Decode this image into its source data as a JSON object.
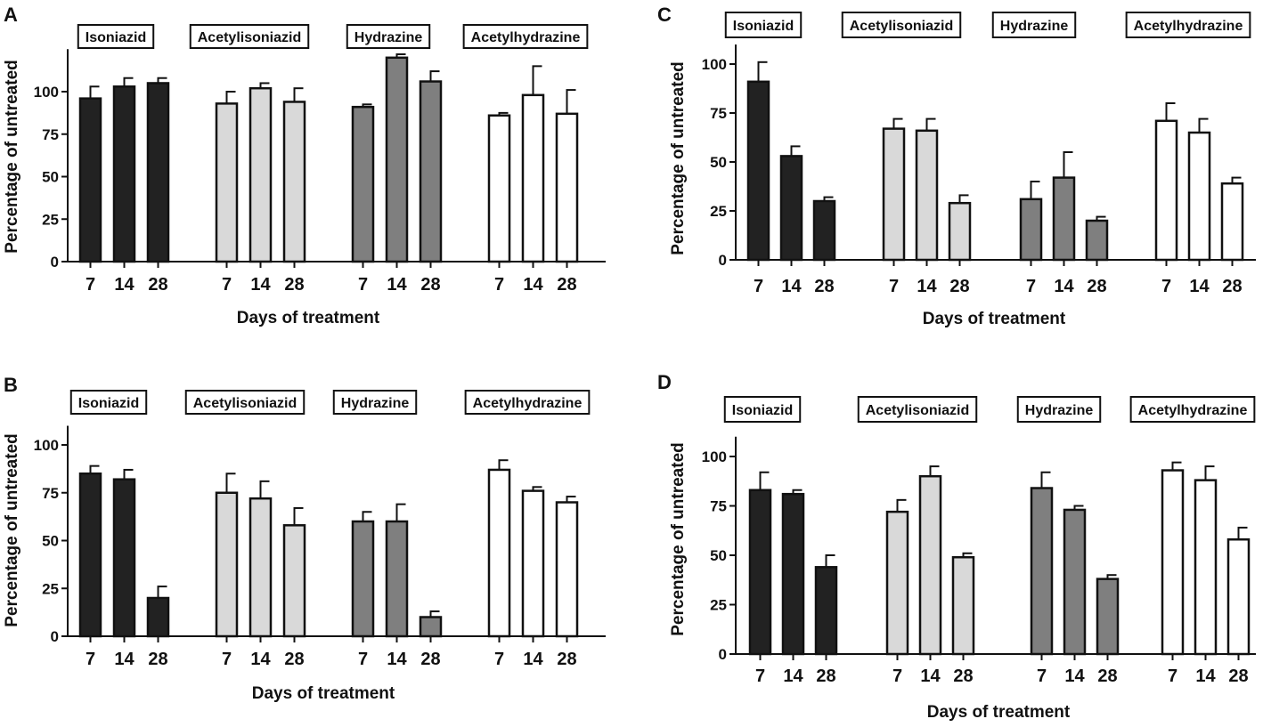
{
  "figure": {
    "x_group_order": [
      "Isoniazid",
      "Acetylisoniazid",
      "Hydrazine",
      "Acetylhydrazine"
    ],
    "group_colors": {
      "Isoniazid": "#222222",
      "Acetylisoniazid": "#d9d9d9",
      "Hydrazine": "#7f7f7f",
      "Acetylhydrazine": "#ffffff"
    },
    "stroke_color": "#111111"
  },
  "chart_data": [
    {
      "panel": "A",
      "type": "bar",
      "xlabel": "Days of treatment",
      "ylabel": "Percentage of untreated",
      "ylim": [
        0,
        125
      ],
      "yticks": [
        0,
        25,
        50,
        75,
        100
      ],
      "categories": [
        "7",
        "14",
        "28"
      ],
      "groups": [
        {
          "name": "Isoniazid",
          "values": [
            96,
            103,
            105
          ],
          "errors": [
            7,
            5,
            3
          ]
        },
        {
          "name": "Acetylisoniazid",
          "values": [
            93,
            102,
            94
          ],
          "errors": [
            7,
            3,
            8
          ]
        },
        {
          "name": "Hydrazine",
          "values": [
            91,
            120,
            106
          ],
          "errors": [
            1.5,
            2,
            6
          ]
        },
        {
          "name": "Acetylhydrazine",
          "values": [
            86,
            98,
            87
          ],
          "errors": [
            1.5,
            17,
            14
          ]
        }
      ]
    },
    {
      "panel": "B",
      "type": "bar",
      "xlabel": "Days of treatment",
      "ylabel": "Percentage of untreated",
      "ylim": [
        0,
        110
      ],
      "yticks": [
        0,
        25,
        50,
        75,
        100
      ],
      "categories": [
        "7",
        "14",
        "28"
      ],
      "groups": [
        {
          "name": "Isoniazid",
          "values": [
            85,
            82,
            20
          ],
          "errors": [
            4,
            5,
            6
          ]
        },
        {
          "name": "Acetylisoniazid",
          "values": [
            75,
            72,
            58
          ],
          "errors": [
            10,
            9,
            9
          ]
        },
        {
          "name": "Hydrazine",
          "values": [
            60,
            60,
            10
          ],
          "errors": [
            5,
            9,
            3
          ]
        },
        {
          "name": "Acetylhydrazine",
          "values": [
            87,
            76,
            70
          ],
          "errors": [
            5,
            2,
            3
          ]
        }
      ]
    },
    {
      "panel": "C",
      "type": "bar",
      "xlabel": "Days of treatment",
      "ylabel": "Percentage of untreated",
      "ylim": [
        0,
        110
      ],
      "yticks": [
        0,
        25,
        50,
        75,
        100
      ],
      "categories": [
        "7",
        "14",
        "28"
      ],
      "groups": [
        {
          "name": "Isoniazid",
          "values": [
            91,
            53,
            30
          ],
          "errors": [
            10,
            5,
            2
          ]
        },
        {
          "name": "Acetylisoniazid",
          "values": [
            67,
            66,
            29
          ],
          "errors": [
            5,
            6,
            4
          ]
        },
        {
          "name": "Hydrazine",
          "values": [
            31,
            42,
            20
          ],
          "errors": [
            9,
            13,
            2
          ]
        },
        {
          "name": "Acetylhydrazine",
          "values": [
            71,
            65,
            39
          ],
          "errors": [
            9,
            7,
            3
          ]
        }
      ]
    },
    {
      "panel": "D",
      "type": "bar",
      "xlabel": "Days of treatment",
      "ylabel": "Percentage of untreated",
      "ylim": [
        0,
        110
      ],
      "yticks": [
        0,
        25,
        50,
        75,
        100
      ],
      "categories": [
        "7",
        "14",
        "28"
      ],
      "groups": [
        {
          "name": "Isoniazid",
          "values": [
            83,
            81,
            44
          ],
          "errors": [
            9,
            2,
            6
          ]
        },
        {
          "name": "Acetylisoniazid",
          "values": [
            72,
            90,
            49
          ],
          "errors": [
            6,
            5,
            2
          ]
        },
        {
          "name": "Hydrazine",
          "values": [
            84,
            73,
            38
          ],
          "errors": [
            8,
            2,
            2
          ]
        },
        {
          "name": "Acetylhydrazine",
          "values": [
            93,
            88,
            58
          ],
          "errors": [
            4,
            7,
            6
          ]
        }
      ]
    }
  ]
}
